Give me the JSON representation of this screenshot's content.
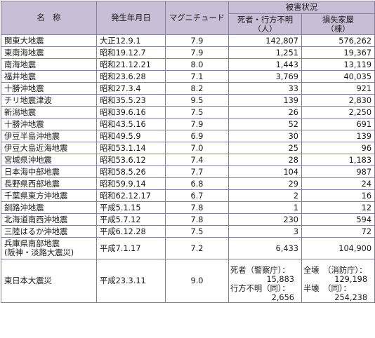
{
  "header": {
    "name": "名　称",
    "date": "発生年月日",
    "magnitude": "マグニチュード",
    "damage": "被害状況",
    "deaths_label": "死者・行方不明",
    "deaths_unit": "（人）",
    "houses_label": "損失家屋",
    "houses_unit": "（棟）"
  },
  "rows": [
    {
      "name": "関東大地震",
      "date": "大正12.9.1",
      "mag": "7.9",
      "deaths": "142,807",
      "houses": "576,262"
    },
    {
      "name": "東南海地震",
      "date": "昭和19.12.7",
      "mag": "7.9",
      "deaths": "1,251",
      "houses": "19,367"
    },
    {
      "name": "南海地震",
      "date": "昭和21.12.21",
      "mag": "8.0",
      "deaths": "1,443",
      "houses": "13,119"
    },
    {
      "name": "福井地震",
      "date": "昭和23.6.28",
      "mag": "7.1",
      "deaths": "3,769",
      "houses": "40,035"
    },
    {
      "name": "十勝沖地震",
      "date": "昭和27.3.4",
      "mag": "8.2",
      "deaths": "33",
      "houses": "921"
    },
    {
      "name": "チリ地震津波",
      "date": "昭和35.5.23",
      "mag": "9.5",
      "deaths": "139",
      "houses": "2,830"
    },
    {
      "name": "新潟地震",
      "date": "昭和39.6.16",
      "mag": "7.5",
      "deaths": "26",
      "houses": "2,250"
    },
    {
      "name": "十勝沖地震",
      "date": "昭和43.5.16",
      "mag": "7.9",
      "deaths": "52",
      "houses": "691"
    },
    {
      "name": "伊豆半島沖地震",
      "date": "昭和49.5.9",
      "mag": "6.9",
      "deaths": "30",
      "houses": "139"
    },
    {
      "name": "伊豆大島近海地震",
      "date": "昭和53.1.14",
      "mag": "7.0",
      "deaths": "25",
      "houses": "96"
    },
    {
      "name": "宮城県沖地震",
      "date": "昭和53.6.12",
      "mag": "7.4",
      "deaths": "28",
      "houses": "1,183"
    },
    {
      "name": "日本海中部地震",
      "date": "昭和58.5.26",
      "mag": "7.7",
      "deaths": "104",
      "houses": "987"
    },
    {
      "name": "長野県西部地震",
      "date": "昭和59.9.14",
      "mag": "6.8",
      "deaths": "29",
      "houses": "24"
    },
    {
      "name": "千葉県東方沖地震",
      "date": "昭和62.12.17",
      "mag": "6.7",
      "deaths": "2",
      "houses": "16"
    },
    {
      "name": "釧路沖地震",
      "date": "平成5.1.15",
      "mag": "7.8",
      "deaths": "1",
      "houses": "12"
    },
    {
      "name": "北海道南西沖地震",
      "date": "平成5.7.12",
      "mag": "7.8",
      "deaths": "230",
      "houses": "594"
    },
    {
      "name": "三陸はるか沖地震",
      "date": "平成6.12.28",
      "mag": "7.5",
      "deaths": "3",
      "houses": "72"
    }
  ],
  "hanshin": {
    "name_line1": "兵庫県南部地震",
    "name_line2": "(阪神・淡路大震災)",
    "date": "平成7.1.17",
    "mag": "7.2",
    "deaths": "6,433",
    "houses": "104,900"
  },
  "tohoku": {
    "name": "東日本大震災",
    "date": "平成23.3.11",
    "mag": "9.0",
    "deaths_line1": "死者（警察庁）：",
    "deaths_line2": "15,883",
    "deaths_line3": "行方不明（同）：",
    "deaths_line4": "2,656",
    "houses_line1": "全壊　（消防庁）：",
    "houses_line2": "129,198",
    "houses_line3": "半壊　（同）：",
    "houses_line4": "254,238"
  }
}
